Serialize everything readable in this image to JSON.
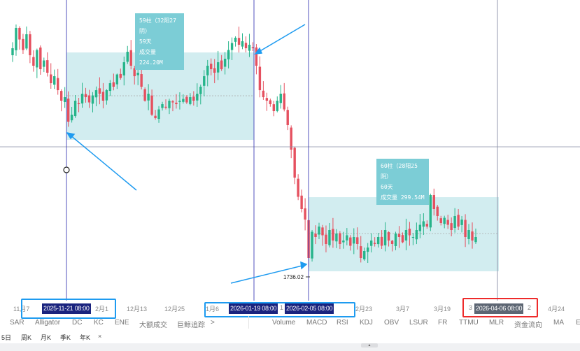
{
  "chart_data": {
    "type": "candlestick",
    "price_label": "1736.02",
    "closes": [
      3000,
      3116,
      3050,
      2990,
      3080,
      2960,
      2900,
      2990,
      2880,
      2930,
      2860,
      2800,
      2840,
      2760,
      2700,
      2720,
      2580,
      2620,
      2700,
      2680,
      2740,
      2720,
      2690,
      2730,
      2760,
      2740,
      2700,
      2760,
      2800,
      2780,
      2850,
      2830,
      2920,
      2980,
      2900,
      2840,
      2860,
      2780,
      2700,
      2740,
      2620,
      2600,
      2650,
      2680,
      2660,
      2700,
      2690,
      2680,
      2700,
      2710,
      2690,
      2720,
      2700,
      2740,
      2780,
      2840,
      2900,
      2880,
      2860,
      2920,
      2880,
      2940,
      2990,
      3030,
      3060,
      3020,
      3040,
      3000,
      3020,
      3000,
      2900,
      2760,
      2720,
      2700,
      2680,
      2640,
      2700,
      2740,
      2650,
      2560,
      2420,
      2260,
      2150,
      2080,
      2020,
      1800,
      1950,
      1920,
      1980,
      1930,
      1880,
      1960,
      1900,
      1940,
      1880,
      1900,
      1930,
      1870,
      1920,
      1880,
      1800,
      1840,
      1860,
      1900,
      1880,
      1920,
      1870,
      1960,
      1900,
      1880,
      1940,
      1920,
      1890,
      1960,
      1930,
      1920,
      1960,
      1990,
      2010,
      1980,
      2160,
      2080,
      2040,
      2000,
      2030,
      1990,
      1960,
      2040,
      1980,
      2020,
      1920,
      1960,
      1900,
      1920
    ],
    "up_color": "#26b48a",
    "down_color": "#e5505f",
    "ranges": [
      {
        "start": "2025-11-21 08:00",
        "end": "2026-01-19 08:00",
        "line1": "59柱（32阳27阴）",
        "line2": "59天",
        "line3": "成交量 224.20M"
      },
      {
        "start": "2026-02-05 08:00",
        "end": "2026-04-06 08:00",
        "line1": "60柱（28阳25阴）",
        "line2": "60天",
        "line3": "成交量 299.54M"
      }
    ],
    "x_ticks": [
      "11月7",
      "2月1",
      "12月13",
      "12月25",
      "1月6",
      "1",
      "2月23",
      "3月7",
      "3月19",
      "3",
      "2",
      "4月24"
    ]
  },
  "time_labels": [
    "2025-11-21 08:00",
    "2026-01-19 08:00",
    "2026-02-05 08:00",
    "2026-04-06 08:00"
  ],
  "indicators_main": [
    "SAR",
    "Alligator",
    "DC",
    "KC",
    "ENE",
    "大额成交",
    "巨鲸追踪",
    ">"
  ],
  "indicators_sub": [
    "Volume",
    "MACD",
    "RSI",
    "KDJ",
    "OBV",
    "LSUR",
    "FR",
    "TTMU",
    "MLR",
    "资金流向",
    "MA",
    "E"
  ],
  "periods": [
    "5日",
    "周K",
    "月K",
    "季K",
    "年K",
    "×"
  ],
  "colors": {
    "range_fill": "#cdebee",
    "tooltip": "#7ccdd6",
    "marker_line": "#3d3db5",
    "arrow": "#1e9bf0",
    "date_label": "#1a237e",
    "date_label_gray": "#5d6673"
  }
}
